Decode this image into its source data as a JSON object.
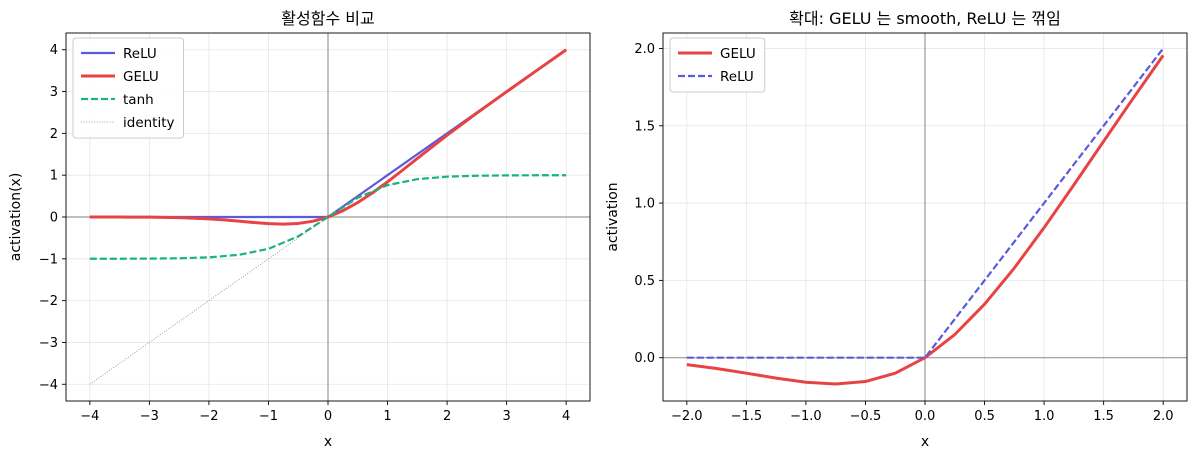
{
  "chart_data": [
    {
      "type": "line",
      "title": "활성함수 비교",
      "xlabel": "x",
      "ylabel": "activation(x)",
      "xlim": [
        -4.4,
        4.4
      ],
      "ylim": [
        -4.4,
        4.4
      ],
      "xticks": [
        -4,
        -3,
        -2,
        -1,
        0,
        1,
        2,
        3,
        4
      ],
      "yticks": [
        -4,
        -3,
        -2,
        -1,
        0,
        1,
        2,
        3,
        4
      ],
      "xtick_labels": [
        "−4",
        "−3",
        "−2",
        "−1",
        "0",
        "1",
        "2",
        "3",
        "4"
      ],
      "ytick_labels": [
        "−4",
        "−3",
        "−2",
        "−1",
        "0",
        "1",
        "2",
        "3",
        "4"
      ],
      "grid": true,
      "legend_position": "top-left",
      "reference_lines": {
        "x": 0,
        "y": 0,
        "color": "#999999"
      },
      "series": [
        {
          "name": "ReLU",
          "color": "#5a5adf",
          "style": "solid",
          "width": "medium",
          "x": [
            -4,
            0,
            4
          ],
          "y": [
            0,
            0,
            4
          ]
        },
        {
          "name": "GELU",
          "color": "#e84343",
          "style": "solid",
          "width": "thick",
          "x": [
            -4,
            -3.5,
            -3,
            -2.5,
            -2,
            -1.75,
            -1.5,
            -1.25,
            -1,
            -0.75,
            -0.5,
            -0.25,
            0,
            0.25,
            0.5,
            0.75,
            1,
            1.25,
            1.5,
            2,
            2.5,
            3,
            3.5,
            4
          ],
          "y": [
            0,
            -0.001,
            -0.004,
            -0.015,
            -0.045,
            -0.07,
            -0.1,
            -0.132,
            -0.159,
            -0.17,
            -0.154,
            -0.1,
            0,
            0.15,
            0.346,
            0.58,
            0.841,
            1.118,
            1.4,
            1.955,
            2.485,
            2.996,
            3.499,
            4
          ]
        },
        {
          "name": "tanh",
          "color": "#17b47c",
          "style": "dashed",
          "width": "medium",
          "x": [
            -4,
            -3.5,
            -3,
            -2.5,
            -2,
            -1.5,
            -1,
            -0.5,
            0,
            0.5,
            1,
            1.5,
            2,
            2.5,
            3,
            3.5,
            4
          ],
          "y": [
            -0.999,
            -0.998,
            -0.995,
            -0.987,
            -0.964,
            -0.905,
            -0.762,
            -0.462,
            0,
            0.462,
            0.762,
            0.905,
            0.964,
            0.987,
            0.995,
            0.998,
            0.999
          ]
        },
        {
          "name": "identity",
          "color": "#888888",
          "style": "dotted",
          "width": "thin",
          "x": [
            -4,
            0
          ],
          "y": [
            -4,
            0
          ]
        }
      ]
    },
    {
      "type": "line",
      "title": "확대: GELU 는 smooth, ReLU 는 꺾임",
      "xlabel": "x",
      "ylabel": "activation",
      "xlim": [
        -2.2,
        2.2
      ],
      "ylim": [
        -0.28,
        2.1
      ],
      "xticks": [
        -2,
        -1.5,
        -1,
        -0.5,
        0,
        0.5,
        1,
        1.5,
        2
      ],
      "yticks": [
        0,
        0.5,
        1,
        1.5,
        2
      ],
      "xtick_labels": [
        "−2.0",
        "−1.5",
        "−1.0",
        "−0.5",
        "0.0",
        "0.5",
        "1.0",
        "1.5",
        "2.0"
      ],
      "ytick_labels": [
        "0.0",
        "0.5",
        "1.0",
        "1.5",
        "2.0"
      ],
      "grid": true,
      "legend_position": "top-left",
      "reference_lines": {
        "x": 0,
        "y": 0,
        "color": "#999999"
      },
      "series": [
        {
          "name": "GELU",
          "color": "#e84343",
          "style": "solid",
          "width": "thick",
          "x": [
            -2,
            -1.75,
            -1.5,
            -1.25,
            -1,
            -0.75,
            -0.5,
            -0.25,
            0,
            0.25,
            0.5,
            0.75,
            1,
            1.25,
            1.5,
            1.75,
            2
          ],
          "y": [
            -0.045,
            -0.07,
            -0.1,
            -0.132,
            -0.159,
            -0.17,
            -0.154,
            -0.1,
            0,
            0.15,
            0.346,
            0.58,
            0.841,
            1.118,
            1.4,
            1.68,
            1.955
          ]
        },
        {
          "name": "ReLU",
          "color": "#5a5adf",
          "style": "dashed",
          "width": "medium",
          "x": [
            -2,
            0,
            2
          ],
          "y": [
            0,
            0,
            2
          ]
        }
      ]
    }
  ]
}
